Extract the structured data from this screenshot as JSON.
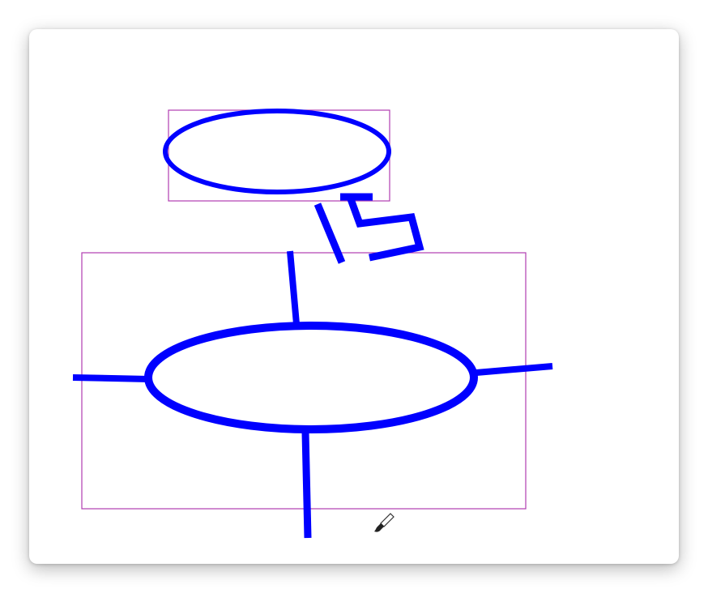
{
  "canvas": {
    "background_color": "#ffffff",
    "stroke_color": "#0000ff",
    "selection_color": "#b03cb0"
  },
  "cursor": {
    "icon": "paintbrush-cursor-icon"
  }
}
